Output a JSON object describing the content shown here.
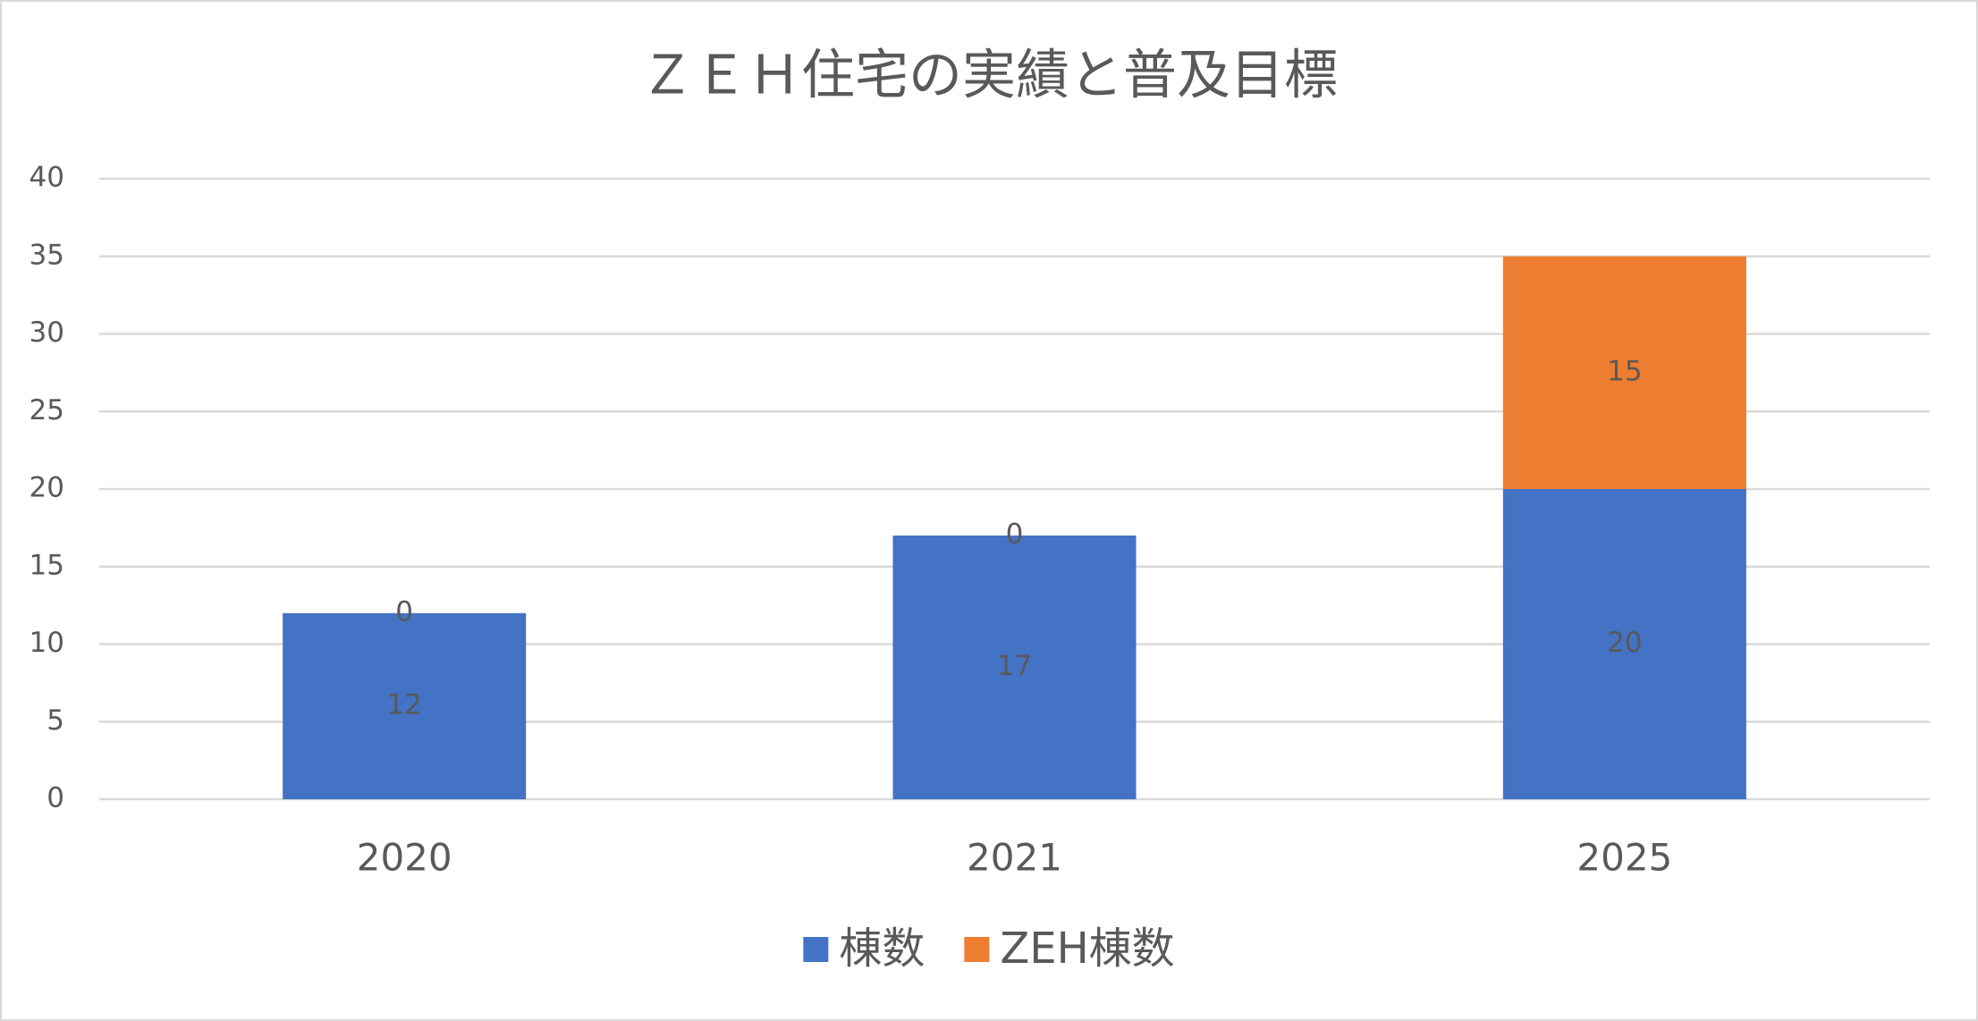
{
  "chart_data": {
    "type": "stacked_bar",
    "title": "ＺＥＨ住宅の実績と普及目標",
    "categories": [
      "2020",
      "2021",
      "2025"
    ],
    "series": [
      {
        "name": "棟数",
        "color": "#4472c4",
        "values": [
          12,
          17,
          20
        ]
      },
      {
        "name": "ZEH棟数",
        "color": "#ed7d31",
        "values": [
          0,
          0,
          15
        ]
      }
    ],
    "ylim": [
      0,
      40
    ],
    "yticks": [
      0,
      5,
      10,
      15,
      20,
      25,
      30,
      35,
      40
    ],
    "grid": true,
    "legend": "bottom"
  }
}
